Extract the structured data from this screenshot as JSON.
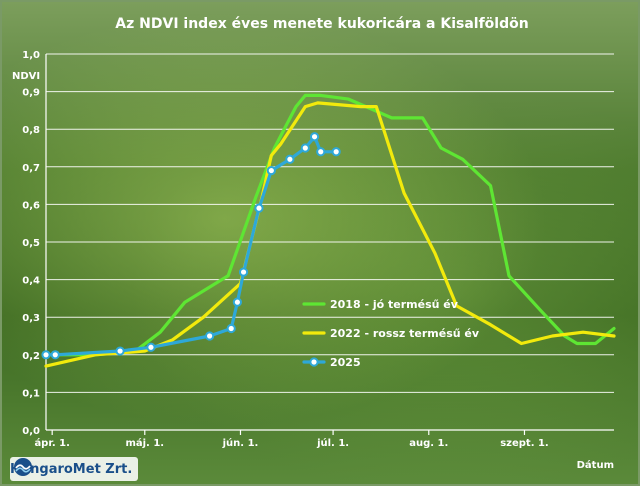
{
  "chart_data": {
    "type": "line",
    "title": "Az NDVI index éves menete kukoricára a Kisalföldön",
    "ylabel": "NDVI",
    "xlabel": "Dátum",
    "ylim": [
      0,
      1.0
    ],
    "yticks": [
      "0,0",
      "0,1",
      "0,2",
      "0,3",
      "0,4",
      "0,5",
      "0,6",
      "0,7",
      "0,8",
      "0,9",
      "1,0"
    ],
    "xlim": [
      "2025-03-30",
      "2025-09-30"
    ],
    "xticks": [
      {
        "label": "ápr. 1.",
        "date": "2025-04-01"
      },
      {
        "label": "máj. 1.",
        "date": "2025-05-01"
      },
      {
        "label": "jún. 1.",
        "date": "2025-06-01"
      },
      {
        "label": "júl. 1.",
        "date": "2025-07-01"
      },
      {
        "label": "aug. 1.",
        "date": "2025-08-01"
      },
      {
        "label": "szept. 1.",
        "date": "2025-09-01"
      }
    ],
    "grid": true,
    "legend_position": "bottom-right",
    "series": [
      {
        "name": "2018 - jó termésű év",
        "color": "#5ee633",
        "markers": false,
        "points": [
          [
            "2025-03-30",
            0.2
          ],
          [
            "2025-04-15",
            0.2
          ],
          [
            "2025-04-28",
            0.21
          ],
          [
            "2025-05-06",
            0.26
          ],
          [
            "2025-05-14",
            0.34
          ],
          [
            "2025-05-28",
            0.41
          ],
          [
            "2025-06-06",
            0.62
          ],
          [
            "2025-06-12",
            0.75
          ],
          [
            "2025-06-19",
            0.86
          ],
          [
            "2025-06-22",
            0.89
          ],
          [
            "2025-06-27",
            0.89
          ],
          [
            "2025-07-06",
            0.88
          ],
          [
            "2025-07-20",
            0.83
          ],
          [
            "2025-07-30",
            0.83
          ],
          [
            "2025-08-05",
            0.75
          ],
          [
            "2025-08-12",
            0.72
          ],
          [
            "2025-08-21",
            0.65
          ],
          [
            "2025-08-27",
            0.41
          ],
          [
            "2025-09-06",
            0.32
          ],
          [
            "2025-09-14",
            0.25
          ],
          [
            "2025-09-18",
            0.23
          ],
          [
            "2025-09-24",
            0.23
          ],
          [
            "2025-09-30",
            0.27
          ]
        ]
      },
      {
        "name": "2022 - rossz termésű év",
        "color": "#f2ea0c",
        "markers": false,
        "points": [
          [
            "2025-03-30",
            0.17
          ],
          [
            "2025-04-15",
            0.2
          ],
          [
            "2025-05-01",
            0.21
          ],
          [
            "2025-05-10",
            0.24
          ],
          [
            "2025-05-20",
            0.3
          ],
          [
            "2025-06-01",
            0.39
          ],
          [
            "2025-06-08",
            0.62
          ],
          [
            "2025-06-11",
            0.73
          ],
          [
            "2025-06-14",
            0.76
          ],
          [
            "2025-06-22",
            0.86
          ],
          [
            "2025-06-26",
            0.87
          ],
          [
            "2025-07-10",
            0.86
          ],
          [
            "2025-07-15",
            0.86
          ],
          [
            "2025-07-24",
            0.63
          ],
          [
            "2025-08-03",
            0.47
          ],
          [
            "2025-08-10",
            0.33
          ],
          [
            "2025-08-21",
            0.28
          ],
          [
            "2025-08-31",
            0.23
          ],
          [
            "2025-09-10",
            0.25
          ],
          [
            "2025-09-20",
            0.26
          ],
          [
            "2025-09-30",
            0.25
          ]
        ]
      },
      {
        "name": "2025",
        "color": "#2ea8d8",
        "markers": true,
        "points": [
          [
            "2025-03-30",
            0.2
          ],
          [
            "2025-04-02",
            0.2
          ],
          [
            "2025-04-23",
            0.21
          ],
          [
            "2025-05-03",
            0.22
          ],
          [
            "2025-05-22",
            0.25
          ],
          [
            "2025-05-29",
            0.27
          ],
          [
            "2025-05-31",
            0.34
          ],
          [
            "2025-06-02",
            0.42
          ],
          [
            "2025-06-07",
            0.59
          ],
          [
            "2025-06-11",
            0.69
          ],
          [
            "2025-06-17",
            0.72
          ],
          [
            "2025-06-22",
            0.75
          ],
          [
            "2025-06-25",
            0.78
          ],
          [
            "2025-06-27",
            0.74
          ],
          [
            "2025-07-02",
            0.74
          ]
        ]
      }
    ]
  },
  "logo": {
    "text": "HungaroMet Zrt."
  }
}
